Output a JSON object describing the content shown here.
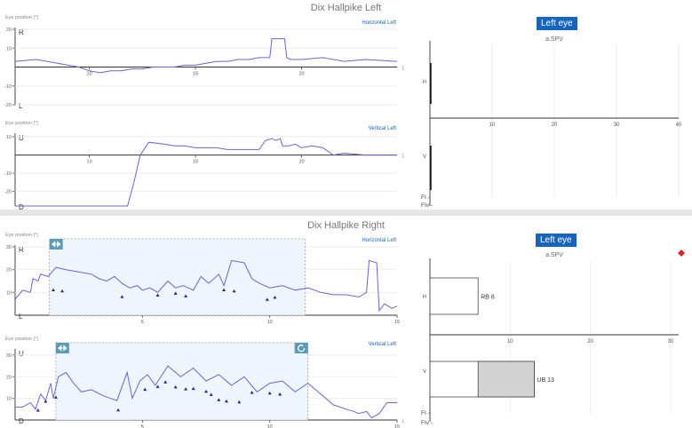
{
  "colors": {
    "trace": "#6a63d8",
    "accent": "#1565c0",
    "region_fill": "#eef5fc",
    "region_stroke": "#9a9a9a",
    "bar_fill": "#d3d3d3",
    "marker": "#e02020"
  },
  "icons": {
    "move": "move-arrows-icon",
    "reset": "rotate-icon",
    "warning": "red-diamond-icon"
  },
  "panels": [
    {
      "title": "Dix Hallpike Left",
      "eye_button": "Left eye",
      "spv_chart": {
        "title": "a.SPV",
        "xticks": [
          "10",
          "20",
          "30",
          "40"
        ],
        "row_labels": [
          "H",
          "V"
        ],
        "bars": [],
        "footer": [
          "FI -",
          "FIv -"
        ]
      },
      "traces": [
        {
          "ylabel": "Eye position [°]",
          "name": "Horizontal Left",
          "top_letter": "R",
          "bottom_letter": "L",
          "yticks": [
            "20",
            "10",
            "-10",
            "-20"
          ],
          "xticks": [
            "10",
            "15",
            "20"
          ],
          "end_tick": "1",
          "chart_data": {
            "type": "line",
            "xlim": [
              6.5,
              24.5
            ],
            "ylim": [
              -20,
              20
            ],
            "x": [
              6.5,
              7.5,
              8.5,
              9.0,
              9.5,
              10.0,
              10.5,
              11.0,
              11.5,
              12.0,
              12.5,
              13.0,
              13.5,
              14.0,
              14.5,
              15.0,
              15.5,
              16.0,
              16.5,
              17.0,
              17.5,
              18.0,
              18.5,
              18.6,
              18.7,
              19.0,
              19.2,
              19.3,
              19.5,
              20.0,
              21.0,
              22.0,
              23.0,
              24.5
            ],
            "y": [
              3,
              4,
              2,
              1,
              0,
              -2,
              -3,
              -2,
              -2,
              -1,
              -1,
              0,
              0,
              0,
              1,
              1,
              2,
              3,
              3,
              4,
              4,
              5,
              5,
              15,
              15,
              15,
              15,
              5,
              4,
              4,
              5,
              3,
              4,
              3
            ]
          }
        },
        {
          "ylabel": "Eye position [°]",
          "name": "Vertical Left",
          "top_letter": "U",
          "bottom_letter": "D",
          "yticks": [
            "10",
            "-10",
            "-20"
          ],
          "xticks": [
            "10",
            "15",
            "20"
          ],
          "end_tick": "1",
          "chart_data": {
            "type": "line",
            "xlim": [
              6.5,
              24.5
            ],
            "ylim": [
              -28,
              11
            ],
            "x": [
              6.5,
              7.0,
              8.0,
              9.0,
              10.0,
              11.0,
              11.8,
              12.1,
              12.4,
              12.8,
              13.5,
              14.0,
              14.5,
              15.0,
              15.5,
              16.0,
              16.5,
              17.0,
              17.5,
              18.0,
              18.3,
              18.6,
              18.8,
              19.0,
              19.1,
              19.4,
              19.7,
              20.0,
              20.5,
              21.0,
              21.5,
              22.0,
              23.0,
              24.5
            ],
            "y": [
              -28,
              -28,
              -28,
              -28,
              -28,
              -28,
              -28,
              -15,
              0,
              7,
              6,
              5,
              5,
              4,
              4,
              4,
              3,
              3,
              3,
              3,
              8,
              9,
              8,
              9,
              5,
              5,
              6,
              4,
              5,
              4,
              0,
              1,
              0,
              0
            ]
          }
        }
      ]
    },
    {
      "title": "Dix Hallpike Right",
      "eye_button": "Left eye",
      "spv_chart": {
        "title": "a.SPV",
        "xticks": [
          "10",
          "20",
          "30"
        ],
        "row_labels": [
          "H",
          "V"
        ],
        "bars": [
          {
            "row": "H",
            "value": 6,
            "shaded_from": null,
            "label": "RB 6"
          },
          {
            "row": "V",
            "value": 13,
            "shaded_from": 6,
            "label": "UB 13"
          }
        ],
        "footer": [
          "FI -",
          "FIv -"
        ]
      },
      "traces": [
        {
          "ylabel": "Eye position [°]",
          "name": "Horizontal Left",
          "top_letter": "R",
          "bottom_letter": "L",
          "yticks": [
            "30",
            "20",
            "10"
          ],
          "xticks": [
            "5",
            "10",
            "15"
          ],
          "end_tick": "",
          "chart_data": {
            "type": "line",
            "xlim": [
              0,
              15
            ],
            "ylim": [
              0,
              30
            ],
            "x": [
              0,
              0.3,
              0.6,
              0.7,
              0.9,
              1.0,
              1.3,
              1.6,
              2.0,
              2.5,
              3.0,
              3.3,
              3.6,
              3.9,
              4.2,
              4.5,
              4.8,
              5.0,
              5.3,
              5.6,
              6.0,
              6.3,
              6.6,
              7.0,
              7.3,
              7.6,
              8.0,
              8.2,
              8.5,
              9.0,
              9.3,
              9.6,
              10.0,
              10.5,
              11.0,
              11.5,
              12.0,
              12.5,
              13.0,
              13.5,
              13.8,
              13.9,
              14.2,
              14.3,
              14.5,
              14.8,
              15.0
            ],
            "y": [
              7,
              11,
              10,
              16,
              15,
              18,
              17,
              21,
              20,
              19,
              18,
              16,
              15,
              17,
              14,
              12,
              13,
              11,
              12,
              10,
              15,
              12,
              13,
              11,
              17,
              14,
              18,
              13,
              24,
              23,
              16,
              14,
              12,
              13,
              11,
              12,
              10,
              9,
              9,
              8,
              10,
              24,
              23,
              2,
              5,
              3,
              4
            ]
          },
          "region": {
            "x0": 1.35,
            "x1": 11.4
          },
          "markers": [
            [
              1.5,
              11
            ],
            [
              1.85,
              10.5
            ],
            [
              4.2,
              8
            ],
            [
              5.6,
              8.7
            ],
            [
              6.3,
              9.5
            ],
            [
              6.7,
              8.3
            ],
            [
              8.2,
              11
            ],
            [
              8.6,
              10.5
            ],
            [
              9.9,
              6.8
            ],
            [
              10.2,
              7.7
            ]
          ]
        },
        {
          "ylabel": "Eye position [°]",
          "name": "Vertical Left",
          "top_letter": "U",
          "bottom_letter": "D",
          "yticks": [
            "30",
            "20",
            "10"
          ],
          "xticks": [
            "5",
            "10",
            "15"
          ],
          "end_tick": "1",
          "chart_data": {
            "type": "line",
            "xlim": [
              0,
              15
            ],
            "ylim": [
              0,
              32
            ],
            "x": [
              0,
              0.3,
              0.6,
              0.8,
              1.0,
              1.2,
              1.4,
              1.5,
              1.7,
              2.0,
              2.3,
              2.6,
              3.0,
              3.5,
              4.0,
              4.4,
              4.6,
              4.9,
              5.2,
              5.5,
              6.0,
              6.5,
              7.0,
              7.5,
              8.0,
              8.5,
              9.0,
              9.5,
              10.0,
              10.5,
              11.0,
              11.5,
              12.0,
              12.5,
              13.0,
              13.3,
              13.5,
              13.8,
              14.0,
              14.3,
              14.6,
              15.0
            ],
            "y": [
              6,
              6,
              8,
              5,
              12,
              9,
              17,
              10,
              20,
              22,
              17,
              13,
              14,
              11,
              9,
              22,
              10,
              18,
              21,
              16,
              25,
              20,
              24,
              18,
              21,
              16,
              20,
              13,
              17,
              18,
              13,
              17,
              12,
              7,
              5,
              4,
              3,
              4,
              1,
              3,
              8,
              8
            ]
          },
          "region": {
            "x0": 1.6,
            "x1": 11.5
          },
          "markers": [
            [
              0.9,
              4.4
            ],
            [
              1.2,
              8.5
            ],
            [
              1.6,
              10.4
            ],
            [
              4.05,
              4.5
            ],
            [
              5.1,
              14
            ],
            [
              5.6,
              15.3
            ],
            [
              5.9,
              17.4
            ],
            [
              6.3,
              15.1
            ],
            [
              6.7,
              14.2
            ],
            [
              7.0,
              14.4
            ],
            [
              7.5,
              13.1
            ],
            [
              7.7,
              11.6
            ],
            [
              8.0,
              9.2
            ],
            [
              8.3,
              8.6
            ],
            [
              8.8,
              8.2
            ],
            [
              9.3,
              12.6
            ],
            [
              10.0,
              12.3
            ],
            [
              10.4,
              11.8
            ]
          ]
        }
      ]
    }
  ]
}
